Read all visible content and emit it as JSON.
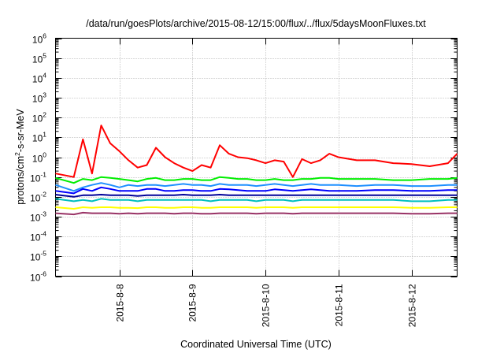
{
  "chart_data": {
    "type": "line",
    "title": "/data/run/goesPlots/archive/2015-08-12/15:00/flux/../flux/5daysMoonFluxes.txt",
    "xlabel": "Coordinated Universal Time (UTC)",
    "ylabel": {
      "pre": "protons/cm",
      "sup": "2",
      "post": "-s-sr-MeV"
    },
    "yscale": "log",
    "ylim": [
      1e-06,
      1000000.0
    ],
    "yticks": [
      {
        "base": "10",
        "exp": "6"
      },
      {
        "base": "10",
        "exp": "5"
      },
      {
        "base": "10",
        "exp": "4"
      },
      {
        "base": "10",
        "exp": "3"
      },
      {
        "base": "10",
        "exp": "2"
      },
      {
        "base": "10",
        "exp": "1"
      },
      {
        "base": "10",
        "exp": "0"
      },
      {
        "base": "10",
        "exp": "-1"
      },
      {
        "base": "10",
        "exp": "-2"
      },
      {
        "base": "10",
        "exp": "-3"
      },
      {
        "base": "10",
        "exp": "-4"
      },
      {
        "base": "10",
        "exp": "-5"
      },
      {
        "base": "10",
        "exp": "-6"
      }
    ],
    "xlim": [
      "2015-08-07 03:00",
      "2015-08-12 15:00"
    ],
    "xticks": [
      "2015-8-8",
      "2015-8-9",
      "2015-8-10",
      "2015-8-11",
      "2015-8-12"
    ],
    "grid": true,
    "legend": "none",
    "x": [
      "2015-08-07 03:00",
      "2015-08-07 09:00",
      "2015-08-07 12:00",
      "2015-08-07 15:00",
      "2015-08-07 18:00",
      "2015-08-07 21:00",
      "2015-08-08 00:00",
      "2015-08-08 03:00",
      "2015-08-08 06:00",
      "2015-08-08 09:00",
      "2015-08-08 12:00",
      "2015-08-08 15:00",
      "2015-08-08 18:00",
      "2015-08-08 21:00",
      "2015-08-09 00:00",
      "2015-08-09 03:00",
      "2015-08-09 06:00",
      "2015-08-09 09:00",
      "2015-08-09 12:00",
      "2015-08-09 15:00",
      "2015-08-09 18:00",
      "2015-08-09 21:00",
      "2015-08-10 00:00",
      "2015-08-10 03:00",
      "2015-08-10 06:00",
      "2015-08-10 09:00",
      "2015-08-10 12:00",
      "2015-08-10 15:00",
      "2015-08-10 18:00",
      "2015-08-10 21:00",
      "2015-08-11 00:00",
      "2015-08-11 06:00",
      "2015-08-11 12:00",
      "2015-08-11 18:00",
      "2015-08-12 00:00",
      "2015-08-12 06:00",
      "2015-08-12 12:00",
      "2015-08-12 15:00"
    ],
    "series": [
      {
        "color": "#ff0000",
        "values": [
          0.15,
          0.1,
          8,
          0.15,
          40,
          5,
          2,
          0.7,
          0.3,
          0.4,
          3,
          1,
          0.5,
          0.3,
          0.2,
          0.4,
          0.3,
          4,
          1.5,
          1,
          0.9,
          0.7,
          0.5,
          0.7,
          0.6,
          0.1,
          0.8,
          0.5,
          0.7,
          1.5,
          1,
          0.7,
          0.7,
          0.5,
          0.45,
          0.35,
          0.5,
          1.5
        ]
      },
      {
        "color": "#00ee00",
        "values": [
          0.09,
          0.05,
          0.08,
          0.07,
          0.1,
          0.09,
          0.08,
          0.07,
          0.06,
          0.08,
          0.09,
          0.07,
          0.07,
          0.08,
          0.08,
          0.07,
          0.07,
          0.1,
          0.09,
          0.08,
          0.08,
          0.07,
          0.07,
          0.08,
          0.07,
          0.07,
          0.08,
          0.08,
          0.09,
          0.09,
          0.08,
          0.08,
          0.08,
          0.07,
          0.07,
          0.08,
          0.08,
          0.09
        ]
      },
      {
        "color": "#1e90ff",
        "values": [
          0.04,
          0.02,
          0.03,
          0.04,
          0.05,
          0.04,
          0.03,
          0.04,
          0.035,
          0.04,
          0.04,
          0.035,
          0.04,
          0.045,
          0.04,
          0.04,
          0.035,
          0.045,
          0.04,
          0.04,
          0.04,
          0.035,
          0.04,
          0.045,
          0.04,
          0.035,
          0.04,
          0.045,
          0.04,
          0.04,
          0.04,
          0.035,
          0.04,
          0.04,
          0.035,
          0.035,
          0.04,
          0.04
        ]
      },
      {
        "color": "#0000ff",
        "values": [
          0.02,
          0.015,
          0.025,
          0.02,
          0.03,
          0.025,
          0.02,
          0.02,
          0.02,
          0.025,
          0.025,
          0.02,
          0.02,
          0.022,
          0.022,
          0.02,
          0.02,
          0.025,
          0.024,
          0.022,
          0.02,
          0.02,
          0.02,
          0.024,
          0.022,
          0.02,
          0.022,
          0.024,
          0.022,
          0.02,
          0.02,
          0.02,
          0.022,
          0.022,
          0.02,
          0.02,
          0.022,
          0.022
        ]
      },
      {
        "color": "#000099",
        "values": [
          0.013,
          0.01,
          0.012,
          0.012,
          0.013,
          0.012,
          0.012,
          0.012,
          0.011,
          0.012,
          0.012,
          0.012,
          0.012,
          0.013,
          0.012,
          0.012,
          0.012,
          0.013,
          0.012,
          0.012,
          0.012,
          0.012,
          0.012,
          0.012,
          0.012,
          0.012,
          0.012,
          0.012,
          0.012,
          0.012,
          0.012,
          0.012,
          0.012,
          0.012,
          0.012,
          0.012,
          0.012,
          0.012
        ]
      },
      {
        "color": "#00bfbf",
        "values": [
          0.008,
          0.006,
          0.007,
          0.006,
          0.008,
          0.007,
          0.007,
          0.007,
          0.006,
          0.007,
          0.007,
          0.007,
          0.007,
          0.007,
          0.007,
          0.007,
          0.006,
          0.007,
          0.007,
          0.007,
          0.007,
          0.006,
          0.007,
          0.007,
          0.007,
          0.006,
          0.007,
          0.007,
          0.007,
          0.007,
          0.007,
          0.007,
          0.007,
          0.007,
          0.006,
          0.006,
          0.007,
          0.007
        ]
      },
      {
        "color": "#ffff00",
        "values": [
          0.003,
          0.0025,
          0.003,
          0.0028,
          0.003,
          0.003,
          0.0028,
          0.0028,
          0.0027,
          0.003,
          0.003,
          0.0028,
          0.0028,
          0.003,
          0.003,
          0.0028,
          0.0028,
          0.003,
          0.003,
          0.003,
          0.003,
          0.0028,
          0.003,
          0.003,
          0.003,
          0.0028,
          0.003,
          0.003,
          0.003,
          0.003,
          0.003,
          0.003,
          0.003,
          0.003,
          0.0028,
          0.0028,
          0.003,
          0.003
        ]
      },
      {
        "color": "#993366",
        "values": [
          0.0015,
          0.0013,
          0.0016,
          0.0015,
          0.0015,
          0.0015,
          0.0014,
          0.0015,
          0.0014,
          0.0015,
          0.0015,
          0.0015,
          0.0014,
          0.0015,
          0.0015,
          0.0014,
          0.0014,
          0.0015,
          0.0015,
          0.0015,
          0.0015,
          0.0014,
          0.0015,
          0.0015,
          0.0015,
          0.0014,
          0.0015,
          0.0015,
          0.0015,
          0.0015,
          0.0015,
          0.0015,
          0.0015,
          0.0015,
          0.0014,
          0.0014,
          0.0015,
          0.0015
        ]
      }
    ]
  }
}
